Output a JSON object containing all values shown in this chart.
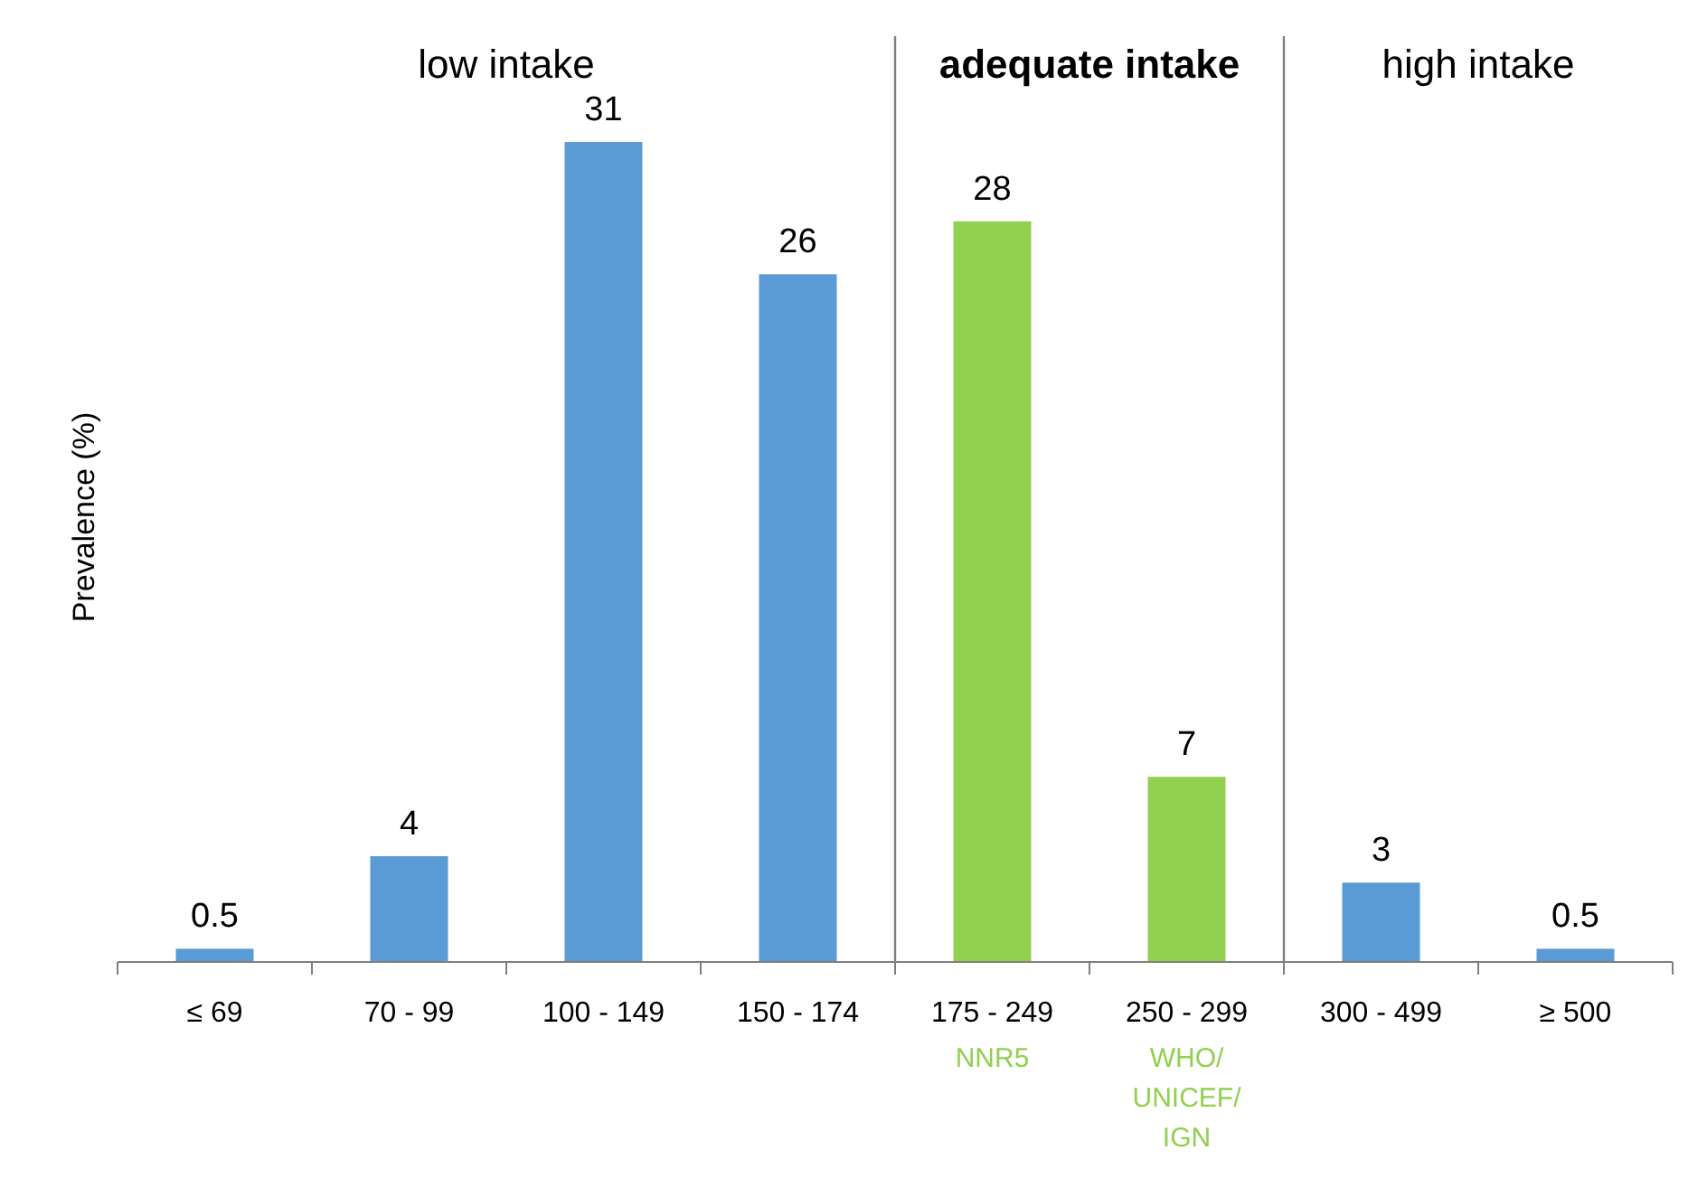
{
  "chart_data": {
    "type": "bar",
    "ylabel": "Prevalence (%)",
    "categories": [
      "≤ 69",
      "70 - 99",
      "100 - 149",
      "150 - 174",
      "175 - 249",
      "250 - 299",
      "300 - 499",
      "≥ 500"
    ],
    "values": [
      0.5,
      4,
      31,
      26,
      28,
      7,
      3,
      0.5
    ],
    "colors": [
      "#5b9bd5",
      "#5b9bd5",
      "#5b9bd5",
      "#5b9bd5",
      "#92d050",
      "#92d050",
      "#5b9bd5",
      "#5b9bd5"
    ],
    "ylim": [
      0,
      35
    ],
    "tick_labels": "x",
    "data_labels": true,
    "annotations": [
      "low intake",
      "adequate intake",
      "high intake",
      "NNR5",
      "WHO/ UNICEF/ IGN"
    ]
  }
}
